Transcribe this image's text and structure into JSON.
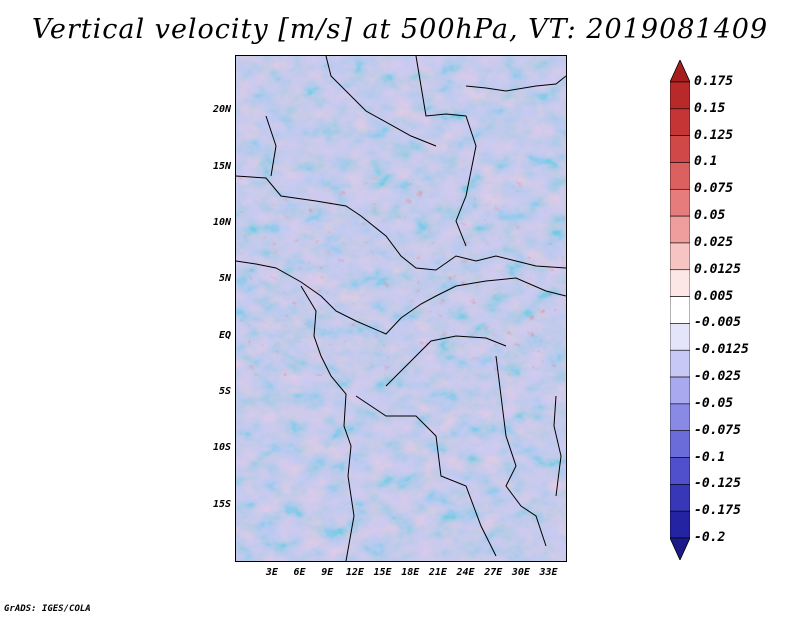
{
  "title": "Vertical velocity [m/s] at 500hPa, VT: 2019081409",
  "footer": "GrADS: IGES/COLA",
  "map": {
    "lat_range": [
      -20,
      25
    ],
    "lon_range": [
      -1,
      35
    ],
    "lat_labels": [
      "20N",
      "15N",
      "10N",
      "5N",
      "EQ",
      "5S",
      "10S",
      "15S"
    ],
    "lat_values": [
      20,
      15,
      10,
      5,
      0,
      -5,
      -10,
      -15
    ],
    "lon_labels": [
      "3E",
      "6E",
      "9E",
      "12E",
      "15E",
      "18E",
      "21E",
      "24E",
      "27E",
      "30E",
      "33E"
    ],
    "lon_values": [
      3,
      6,
      9,
      12,
      15,
      18,
      21,
      24,
      27,
      30,
      33
    ]
  },
  "colorbar": {
    "labels": [
      "0.175",
      "0.15",
      "0.125",
      "0.1",
      "0.075",
      "0.05",
      "0.025",
      "0.0125",
      "0.005",
      "-0.005",
      "-0.0125",
      "-0.025",
      "-0.05",
      "-0.075",
      "-0.1",
      "-0.125",
      "-0.175",
      "-0.2"
    ],
    "colors": [
      "#a51d1d",
      "#b82a2a",
      "#c53535",
      "#d04848",
      "#db6060",
      "#e67c7c",
      "#f09d9d",
      "#f7c4c4",
      "#fde6e6",
      "#ffffff",
      "#e4e4fb",
      "#c8c8f6",
      "#a9a9f0",
      "#8989e6",
      "#6b6bd9",
      "#5050cc",
      "#3737b8",
      "#2424a3",
      "#1a1a8a"
    ]
  }
}
